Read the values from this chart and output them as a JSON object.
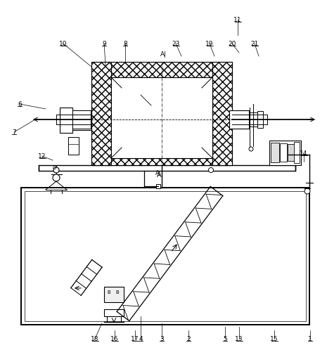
{
  "background": "#ffffff",
  "figsize": [
    4.65,
    4.98
  ],
  "dpi": 100,
  "parts": [
    [
      "1",
      441,
      482
    ],
    [
      "2",
      268,
      482
    ],
    [
      "3",
      230,
      482
    ],
    [
      "4",
      200,
      482
    ],
    [
      "5",
      320,
      482
    ],
    [
      "6",
      28,
      148
    ],
    [
      "7",
      20,
      188
    ],
    [
      "8",
      178,
      62
    ],
    [
      "9",
      148,
      62
    ],
    [
      "10",
      90,
      62
    ],
    [
      "11",
      338,
      28
    ],
    [
      "12",
      60,
      222
    ],
    [
      "13",
      340,
      482
    ],
    [
      "14",
      432,
      218
    ],
    [
      "15",
      390,
      482
    ],
    [
      "16",
      163,
      482
    ],
    [
      "17",
      192,
      482
    ],
    [
      "18",
      135,
      482
    ],
    [
      "19",
      298,
      62
    ],
    [
      "20",
      330,
      62
    ],
    [
      "21",
      362,
      62
    ],
    [
      "23",
      250,
      62
    ]
  ]
}
